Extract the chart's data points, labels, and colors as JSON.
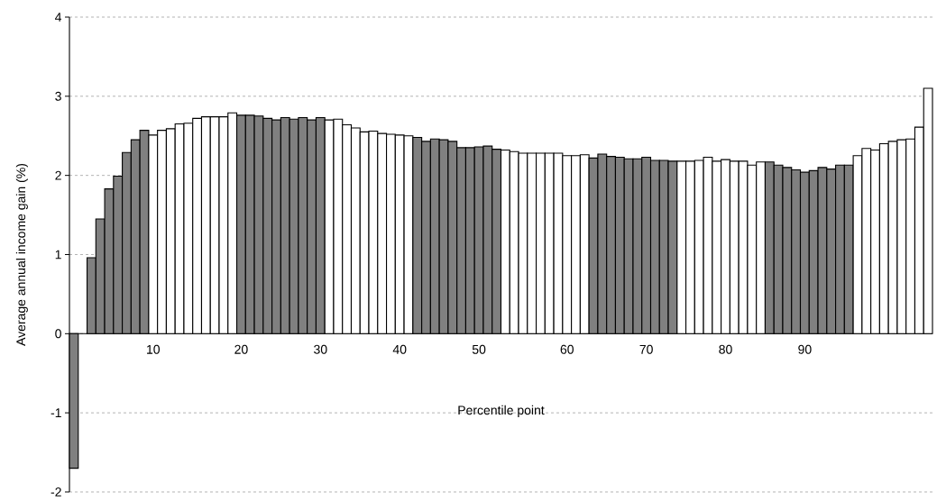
{
  "chart_data": {
    "type": "bar",
    "xlabel": "Percentile point",
    "ylabel": "Average annual income gain (%)",
    "categories": [
      null,
      null,
      null,
      null,
      null,
      null,
      null,
      null,
      null,
      "10",
      null,
      null,
      null,
      null,
      null,
      null,
      null,
      null,
      null,
      "20",
      null,
      null,
      null,
      null,
      null,
      null,
      null,
      null,
      "30",
      null,
      null,
      null,
      null,
      null,
      null,
      null,
      null,
      "40",
      null,
      null,
      null,
      null,
      null,
      null,
      null,
      null,
      "50",
      null,
      null,
      null,
      null,
      null,
      null,
      null,
      null,
      null,
      "60",
      null,
      null,
      null,
      null,
      null,
      null,
      null,
      null,
      "70",
      null,
      null,
      null,
      null,
      null,
      null,
      null,
      null,
      "80",
      null,
      null,
      null,
      null,
      null,
      null,
      null,
      null,
      "90",
      null,
      null,
      null,
      null,
      null,
      null,
      null,
      null,
      null,
      null,
      null,
      null,
      null,
      null
    ],
    "values": [
      -1.7,
      null,
      0.96,
      1.45,
      1.83,
      1.99,
      2.29,
      2.45,
      2.57,
      2.51,
      2.57,
      2.59,
      2.65,
      2.66,
      2.72,
      2.74,
      2.74,
      2.74,
      2.79,
      2.76,
      2.76,
      2.75,
      2.72,
      2.7,
      2.73,
      2.71,
      2.73,
      2.7,
      2.73,
      2.7,
      2.71,
      2.64,
      2.6,
      2.55,
      2.56,
      2.53,
      2.52,
      2.51,
      2.5,
      2.48,
      2.43,
      2.46,
      2.45,
      2.43,
      2.35,
      2.35,
      2.36,
      2.37,
      2.33,
      2.32,
      2.3,
      2.28,
      2.28,
      2.28,
      2.28,
      2.28,
      2.25,
      2.25,
      2.26,
      2.22,
      2.27,
      2.24,
      2.23,
      2.21,
      2.21,
      2.23,
      2.19,
      2.19,
      2.18,
      2.18,
      2.18,
      2.19,
      2.23,
      2.18,
      2.2,
      2.18,
      2.18,
      2.13,
      2.17,
      2.17,
      2.13,
      2.1,
      2.07,
      2.04,
      2.06,
      2.1,
      2.08,
      2.13,
      2.13,
      2.25,
      2.34,
      2.32,
      2.4,
      2.43,
      2.45,
      2.46,
      2.61,
      3.1
    ],
    "colors": [
      "#808080",
      "#808080",
      "#808080",
      "#808080",
      "#808080",
      "#808080",
      "#808080",
      "#808080",
      "#808080",
      "#ffffff",
      "#ffffff",
      "#ffffff",
      "#ffffff",
      "#ffffff",
      "#ffffff",
      "#ffffff",
      "#ffffff",
      "#ffffff",
      "#ffffff",
      "#808080",
      "#808080",
      "#808080",
      "#808080",
      "#808080",
      "#808080",
      "#808080",
      "#808080",
      "#808080",
      "#808080",
      "#ffffff",
      "#ffffff",
      "#ffffff",
      "#ffffff",
      "#ffffff",
      "#ffffff",
      "#ffffff",
      "#ffffff",
      "#ffffff",
      "#ffffff",
      "#808080",
      "#808080",
      "#808080",
      "#808080",
      "#808080",
      "#808080",
      "#808080",
      "#808080",
      "#808080",
      "#808080",
      "#ffffff",
      "#ffffff",
      "#ffffff",
      "#ffffff",
      "#ffffff",
      "#ffffff",
      "#ffffff",
      "#ffffff",
      "#ffffff",
      "#ffffff",
      "#808080",
      "#808080",
      "#808080",
      "#808080",
      "#808080",
      "#808080",
      "#808080",
      "#808080",
      "#808080",
      "#808080",
      "#ffffff",
      "#ffffff",
      "#ffffff",
      "#ffffff",
      "#ffffff",
      "#ffffff",
      "#ffffff",
      "#ffffff",
      "#ffffff",
      "#ffffff",
      "#808080",
      "#808080",
      "#808080",
      "#808080",
      "#808080",
      "#808080",
      "#808080",
      "#808080",
      "#808080",
      "#808080",
      "#ffffff",
      "#ffffff",
      "#ffffff",
      "#ffffff",
      "#ffffff",
      "#ffffff",
      "#ffffff",
      "#ffffff",
      "#ffffff"
    ],
    "ylim": [
      -2,
      4
    ],
    "yticks": [
      -2,
      -1,
      0,
      1,
      2,
      3,
      4
    ],
    "grid": "y"
  }
}
